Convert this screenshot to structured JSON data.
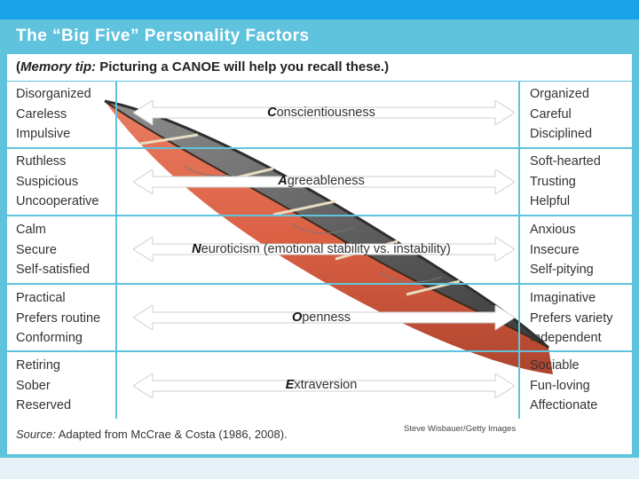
{
  "title": "The “Big Five” Personality Factors",
  "memory_tip": {
    "label": "Memory tip:",
    "text": "Picturing a CANOE will help you recall these.)",
    "open": "("
  },
  "rows": [
    {
      "left": [
        "Disorganized",
        "Careless",
        "Impulsive"
      ],
      "factor_initial": "C",
      "factor_rest": "onscientiousness",
      "right": [
        "Organized",
        "Careful",
        "Disciplined"
      ]
    },
    {
      "left": [
        "Ruthless",
        "Suspicious",
        "Uncooperative"
      ],
      "factor_initial": "A",
      "factor_rest": "greeableness",
      "right": [
        "Soft-hearted",
        "Trusting",
        "Helpful"
      ]
    },
    {
      "left": [
        "Calm",
        "Secure",
        "Self-satisfied"
      ],
      "factor_initial": "N",
      "factor_rest": "euroticism (emotional stability vs. instability)",
      "right": [
        "Anxious",
        "Insecure",
        "Self-pitying"
      ]
    },
    {
      "left": [
        "Practical",
        "Prefers routine",
        "Conforming"
      ],
      "factor_initial": "O",
      "factor_rest": "penness",
      "right": [
        "Imaginative",
        "Prefers variety",
        "Independent"
      ]
    },
    {
      "left": [
        "Retiring",
        "Sober",
        "Reserved"
      ],
      "factor_initial": "E",
      "factor_rest": "xtraversion",
      "right": [
        "Sociable",
        "Fun-loving",
        "Affectionate"
      ]
    }
  ],
  "source": {
    "label": "Source:",
    "text": "Adapted from McCrae & Costa (1986, 2008)."
  },
  "photo_credit": "Steve Wisbauer/Getty Images",
  "colors": {
    "header_bar": "#1aa3e6",
    "panel": "#5fc3dd",
    "canoe_hull": "#d9583a"
  }
}
